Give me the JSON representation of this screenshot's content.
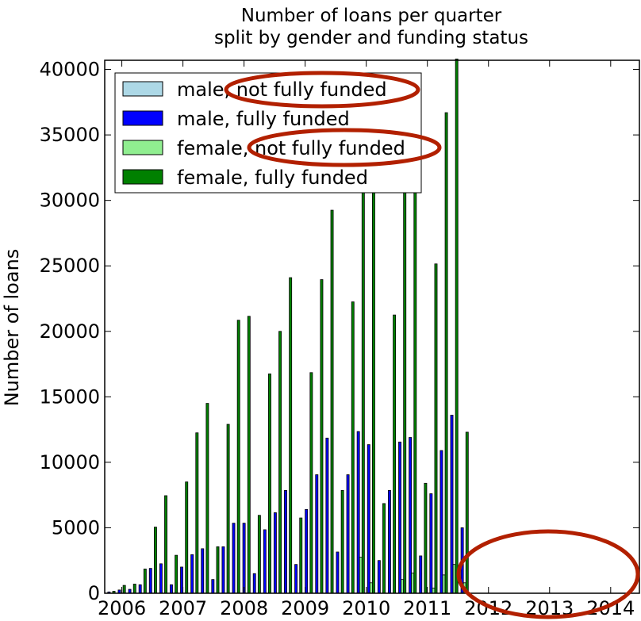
{
  "chart_data": {
    "type": "bar",
    "title_lines": [
      "Number of loans per quarter",
      "split by gender and funding status"
    ],
    "xlabel": "",
    "ylabel": "Number of loans",
    "ylim": [
      0,
      40700
    ],
    "xlim": [
      2005.72,
      2014.47
    ],
    "y_ticks": [
      0,
      5000,
      10000,
      15000,
      20000,
      25000,
      30000,
      35000,
      40000
    ],
    "x_ticks": [
      2006,
      2007,
      2008,
      2009,
      2010,
      2011,
      2012,
      2013,
      2014
    ],
    "grid": false,
    "legend_position": "top-left",
    "colors": {
      "male_not_fully_funded": "#add8e6",
      "male_fully_funded": "#0000ff",
      "female_not_fully_funded": "#90ee90",
      "female_fully_funded": "#008000"
    },
    "categories": [
      "2005Q2",
      "2005Q3",
      "2005Q4",
      "2006Q1",
      "2006Q2",
      "2006Q3",
      "2006Q4",
      "2007Q1",
      "2007Q2",
      "2007Q3",
      "2007Q4",
      "2008Q1",
      "2008Q2",
      "2008Q3",
      "2008Q4",
      "2009Q1",
      "2009Q2",
      "2009Q3",
      "2009Q4",
      "2010Q1",
      "2010Q2",
      "2010Q3",
      "2010Q4",
      "2011Q1",
      "2011Q2",
      "2011Q3",
      "2011Q4",
      "2012Q1",
      "2012Q2",
      "2012Q3",
      "2012Q4",
      "2013Q1",
      "2013Q2",
      "2013Q3",
      "2013Q4",
      "2014Q1",
      "2014Q2",
      "2014Q3"
    ],
    "x": [
      2005.81,
      2005.98,
      2006.15,
      2006.32,
      2006.49,
      2006.66,
      2006.83,
      2007.0,
      2007.17,
      2007.34,
      2007.51,
      2007.68,
      2007.85,
      2008.02,
      2008.19,
      2008.36,
      2008.53,
      2008.7,
      2008.87,
      2009.04,
      2009.21,
      2009.38,
      2009.55,
      2009.72,
      2009.89,
      2010.06,
      2010.23,
      2010.4,
      2010.57,
      2010.74,
      2010.91,
      2011.08,
      2011.25,
      2011.42,
      2011.59,
      2011.76,
      2011.93,
      2012.1
    ],
    "series": [
      {
        "name": "male, not fully funded",
        "key": "male_not_fully_funded",
        "values": [
          0,
          0,
          0,
          0,
          0,
          0,
          0,
          0,
          0,
          0,
          0,
          0,
          0,
          0,
          0,
          0,
          0,
          0,
          0,
          0,
          0,
          0,
          0,
          0,
          0,
          0,
          0,
          0,
          0,
          0,
          0,
          0,
          0,
          0,
          0,
          0,
          0,
          0
        ]
      },
      {
        "name": "male, fully funded",
        "key": "male_fully_funded",
        "values": [
          100,
          250,
          300,
          650,
          1900,
          2250,
          650,
          2000,
          2950,
          3400,
          1050,
          3550,
          5350,
          5350,
          1500,
          4850,
          6150,
          7850,
          2200,
          6400,
          9050,
          11850,
          3150,
          9050,
          12350,
          11350,
          2500,
          7850,
          11550,
          11900,
          2850,
          7600,
          10900,
          13600,
          5000,
          0,
          0,
          0
        ]
      },
      {
        "name": "female, not fully funded",
        "key": "female_not_fully_funded",
        "values": [
          0,
          0,
          0,
          0,
          0,
          0,
          0,
          0,
          0,
          0,
          0,
          0,
          0,
          0,
          0,
          0,
          0,
          0,
          0,
          0,
          0,
          0,
          0,
          0,
          2750,
          800,
          0,
          0,
          1050,
          1550,
          0,
          400,
          1400,
          2200,
          800,
          0,
          0,
          0
        ]
      },
      {
        "name": "female, fully funded",
        "key": "female_fully_funded",
        "values": [
          150,
          600,
          700,
          1850,
          5050,
          7450,
          2900,
          8500,
          12250,
          14500,
          3550,
          12900,
          20850,
          21150,
          5950,
          16750,
          20000,
          24100,
          5750,
          16850,
          23950,
          29250,
          7850,
          22250,
          31150,
          30750,
          6850,
          21250,
          31600,
          34250,
          8400,
          25150,
          36700,
          40800,
          12300,
          0,
          0,
          0
        ]
      }
    ]
  },
  "legend": {
    "items": [
      {
        "label": "male, not fully funded",
        "color": "#add8e6"
      },
      {
        "label": "male, fully funded",
        "color": "#0000ff"
      },
      {
        "label": "female, not fully funded",
        "color": "#90ee90"
      },
      {
        "label": "female, fully funded",
        "color": "#008000"
      }
    ]
  },
  "annotations": {
    "ellipse_color": "#b22000"
  }
}
